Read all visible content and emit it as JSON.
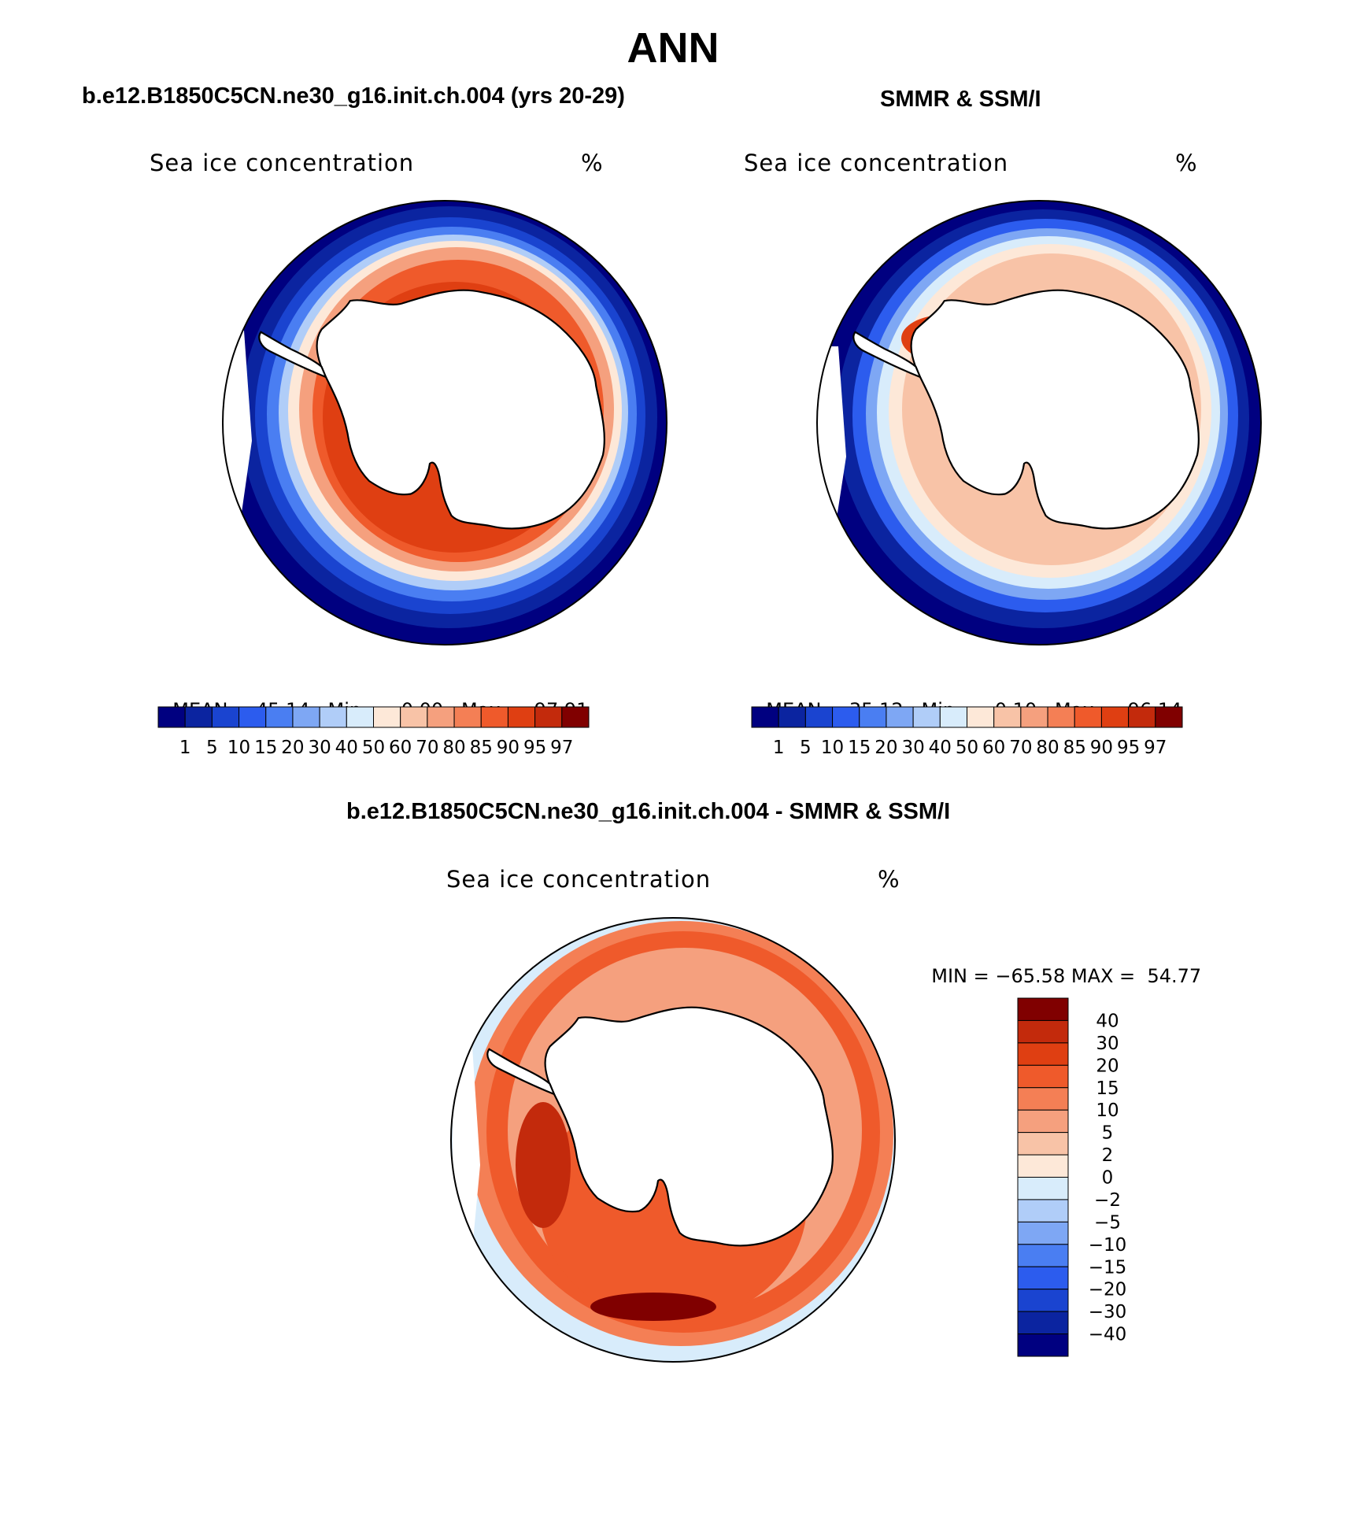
{
  "title": "ANN",
  "colors": {
    "scale": [
      "#000080",
      "#0b24a0",
      "#1a44d0",
      "#2c5cee",
      "#4a7ef2",
      "#7ea7f4",
      "#b0cdf8",
      "#d8ecfb",
      "#fde8d8",
      "#f8c3a7",
      "#f5a07e",
      "#f47f55",
      "#ef5a2b",
      "#df3f12",
      "#c32a0c",
      "#800000"
    ],
    "land": "#ffffff",
    "coast": "#000000"
  },
  "panels": {
    "model": {
      "title": "b.e12.B1850C5CN.ne30_g16.init.ch.004 (yrs 20-29)",
      "variable": "Sea ice concentration",
      "units": "%",
      "mean_label": "MEAN=",
      "mean_value": "45.14",
      "min_label": "Min=",
      "min_value": "0.00",
      "max_label": "Max=",
      "max_value": "97.91"
    },
    "obs": {
      "title": "SMMR & SSM/I",
      "variable": "Sea ice concentration",
      "units": "%",
      "mean_label": "MEAN=",
      "mean_value": "35.12",
      "min_label": "Min=",
      "min_value": "0.10",
      "max_label": "Max=",
      "max_value": "96.14"
    },
    "diff": {
      "title": "b.e12.B1850C5CN.ne30_g16.init.ch.004 - SMMR & SSM/I",
      "variable": "Sea ice concentration",
      "units": "%",
      "min_label": "MIN =",
      "min_value": "−65.58",
      "max_label": "MAX =",
      "max_value": "54.77"
    }
  },
  "colorbar_conc": {
    "labels": [
      "1",
      "5",
      "10",
      "15",
      "20",
      "30",
      "40",
      "50",
      "60",
      "70",
      "80",
      "85",
      "90",
      "95",
      "97"
    ]
  },
  "colorbar_diff": {
    "labels": [
      "40",
      "30",
      "20",
      "15",
      "10",
      "5",
      "2",
      "0",
      "−2",
      "−5",
      "−10",
      "−15",
      "−20",
      "−30",
      "−40"
    ]
  }
}
